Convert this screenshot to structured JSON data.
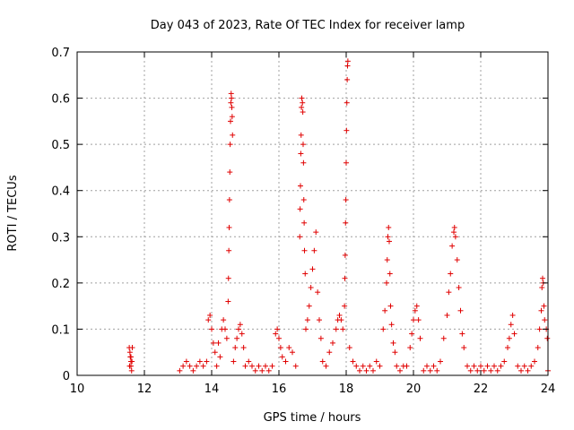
{
  "chart_data": {
    "type": "scatter",
    "title": "Day 043 of 2023, Rate Of TEC Index for receiver lamp",
    "xlabel": "GPS time / hours",
    "ylabel": "ROTI / TECUs",
    "xlim": [
      10,
      24
    ],
    "ylim": [
      0,
      0.7
    ],
    "x_ticks": [
      10,
      12,
      14,
      16,
      18,
      20,
      22,
      24
    ],
    "x_tick_labels": [
      "10",
      "12",
      "14",
      "16",
      "18",
      "20",
      "22",
      "24"
    ],
    "y_ticks": [
      0,
      0.1,
      0.2,
      0.3,
      0.4,
      0.5,
      0.6,
      0.7
    ],
    "y_tick_labels": [
      "0",
      "0.1",
      "0.2",
      "0.3",
      "0.4",
      "0.5",
      "0.6",
      "0.7"
    ],
    "grid": true,
    "marker": "+",
    "color": "#e00000",
    "series": [
      {
        "points": [
          [
            11.55,
            0.06
          ],
          [
            11.57,
            0.05
          ],
          [
            11.58,
            0.04
          ],
          [
            11.6,
            0.03
          ],
          [
            11.6,
            0.02
          ],
          [
            11.62,
            0.01
          ],
          [
            11.63,
            0.03
          ],
          [
            11.64,
            0.06
          ],
          [
            11.56,
            0.02
          ],
          [
            11.6,
            0.04
          ],
          [
            14.49,
            0.16
          ],
          [
            14.5,
            0.21
          ],
          [
            14.51,
            0.27
          ],
          [
            14.52,
            0.32
          ],
          [
            14.53,
            0.38
          ],
          [
            14.54,
            0.44
          ],
          [
            14.55,
            0.5
          ],
          [
            14.56,
            0.55
          ],
          [
            14.57,
            0.59
          ],
          [
            14.58,
            0.61
          ],
          [
            14.59,
            0.6
          ],
          [
            14.6,
            0.58
          ],
          [
            14.61,
            0.56
          ],
          [
            14.62,
            0.52
          ],
          [
            16.62,
            0.3
          ],
          [
            16.63,
            0.36
          ],
          [
            16.64,
            0.41
          ],
          [
            16.65,
            0.48
          ],
          [
            16.66,
            0.52
          ],
          [
            16.67,
            0.58
          ],
          [
            16.68,
            0.6
          ],
          [
            16.7,
            0.59
          ],
          [
            16.71,
            0.57
          ],
          [
            16.72,
            0.5
          ],
          [
            16.73,
            0.46
          ],
          [
            16.74,
            0.38
          ],
          [
            16.75,
            0.33
          ],
          [
            16.76,
            0.27
          ],
          [
            16.78,
            0.22
          ],
          [
            17.95,
            0.15
          ],
          [
            17.96,
            0.21
          ],
          [
            17.97,
            0.26
          ],
          [
            17.98,
            0.33
          ],
          [
            17.99,
            0.38
          ],
          [
            18.0,
            0.46
          ],
          [
            18.01,
            0.53
          ],
          [
            18.02,
            0.59
          ],
          [
            18.03,
            0.64
          ],
          [
            18.04,
            0.67
          ],
          [
            18.05,
            0.68
          ],
          [
            17.1,
            0.31
          ],
          [
            17.05,
            0.27
          ],
          [
            17.0,
            0.23
          ],
          [
            16.95,
            0.19
          ],
          [
            16.9,
            0.15
          ],
          [
            16.85,
            0.12
          ],
          [
            16.8,
            0.1
          ],
          [
            17.15,
            0.18
          ],
          [
            17.2,
            0.12
          ],
          [
            17.25,
            0.08
          ],
          [
            13.9,
            0.12
          ],
          [
            13.95,
            0.13
          ],
          [
            14.0,
            0.1
          ],
          [
            14.05,
            0.07
          ],
          [
            14.1,
            0.05
          ],
          [
            14.2,
            0.07
          ],
          [
            14.3,
            0.1
          ],
          [
            14.35,
            0.12
          ],
          [
            14.4,
            0.1
          ],
          [
            14.45,
            0.08
          ],
          [
            14.7,
            0.06
          ],
          [
            14.75,
            0.08
          ],
          [
            14.8,
            0.1
          ],
          [
            14.85,
            0.11
          ],
          [
            14.9,
            0.09
          ],
          [
            14.95,
            0.06
          ],
          [
            15.9,
            0.09
          ],
          [
            15.95,
            0.1
          ],
          [
            16.0,
            0.08
          ],
          [
            16.05,
            0.06
          ],
          [
            16.1,
            0.04
          ],
          [
            16.3,
            0.06
          ],
          [
            16.4,
            0.05
          ],
          [
            17.5,
            0.05
          ],
          [
            17.6,
            0.07
          ],
          [
            17.7,
            0.1
          ],
          [
            17.75,
            0.12
          ],
          [
            17.8,
            0.13
          ],
          [
            17.85,
            0.12
          ],
          [
            17.9,
            0.1
          ],
          [
            18.1,
            0.06
          ],
          [
            18.2,
            0.03
          ],
          [
            19.1,
            0.1
          ],
          [
            19.15,
            0.14
          ],
          [
            19.2,
            0.2
          ],
          [
            19.22,
            0.25
          ],
          [
            19.24,
            0.3
          ],
          [
            19.26,
            0.32
          ],
          [
            19.28,
            0.29
          ],
          [
            19.3,
            0.22
          ],
          [
            19.32,
            0.15
          ],
          [
            19.35,
            0.11
          ],
          [
            19.4,
            0.07
          ],
          [
            19.45,
            0.05
          ],
          [
            19.9,
            0.06
          ],
          [
            19.95,
            0.09
          ],
          [
            20.0,
            0.12
          ],
          [
            20.05,
            0.14
          ],
          [
            20.1,
            0.15
          ],
          [
            20.15,
            0.12
          ],
          [
            20.2,
            0.08
          ],
          [
            20.9,
            0.08
          ],
          [
            21.0,
            0.13
          ],
          [
            21.05,
            0.18
          ],
          [
            21.1,
            0.22
          ],
          [
            21.15,
            0.28
          ],
          [
            21.2,
            0.31
          ],
          [
            21.22,
            0.32
          ],
          [
            21.25,
            0.3
          ],
          [
            21.3,
            0.25
          ],
          [
            21.35,
            0.19
          ],
          [
            21.4,
            0.14
          ],
          [
            21.45,
            0.09
          ],
          [
            21.5,
            0.06
          ],
          [
            22.8,
            0.06
          ],
          [
            22.85,
            0.08
          ],
          [
            22.9,
            0.11
          ],
          [
            22.95,
            0.13
          ],
          [
            23.0,
            0.09
          ],
          [
            23.7,
            0.06
          ],
          [
            23.75,
            0.1
          ],
          [
            23.8,
            0.14
          ],
          [
            23.82,
            0.19
          ],
          [
            23.84,
            0.21
          ],
          [
            23.86,
            0.2
          ],
          [
            23.88,
            0.15
          ],
          [
            23.9,
            0.12
          ],
          [
            23.95,
            0.1
          ],
          [
            23.98,
            0.08
          ],
          [
            13.05,
            0.01
          ],
          [
            13.15,
            0.02
          ],
          [
            13.25,
            0.03
          ],
          [
            13.35,
            0.02
          ],
          [
            13.45,
            0.01
          ],
          [
            13.55,
            0.02
          ],
          [
            13.65,
            0.03
          ],
          [
            13.75,
            0.02
          ],
          [
            13.85,
            0.03
          ],
          [
            14.15,
            0.02
          ],
          [
            14.25,
            0.04
          ],
          [
            14.65,
            0.03
          ],
          [
            15.0,
            0.02
          ],
          [
            15.1,
            0.03
          ],
          [
            15.2,
            0.02
          ],
          [
            15.3,
            0.01
          ],
          [
            15.4,
            0.02
          ],
          [
            15.5,
            0.01
          ],
          [
            15.6,
            0.02
          ],
          [
            15.7,
            0.01
          ],
          [
            15.8,
            0.02
          ],
          [
            16.2,
            0.03
          ],
          [
            16.5,
            0.02
          ],
          [
            17.3,
            0.03
          ],
          [
            17.4,
            0.02
          ],
          [
            18.3,
            0.02
          ],
          [
            18.4,
            0.01
          ],
          [
            18.5,
            0.02
          ],
          [
            18.6,
            0.01
          ],
          [
            18.7,
            0.02
          ],
          [
            18.8,
            0.01
          ],
          [
            18.9,
            0.03
          ],
          [
            19.0,
            0.02
          ],
          [
            19.5,
            0.02
          ],
          [
            19.6,
            0.01
          ],
          [
            19.7,
            0.02
          ],
          [
            19.8,
            0.02
          ],
          [
            20.3,
            0.01
          ],
          [
            20.4,
            0.02
          ],
          [
            20.5,
            0.01
          ],
          [
            20.6,
            0.02
          ],
          [
            20.7,
            0.01
          ],
          [
            20.8,
            0.03
          ],
          [
            21.6,
            0.02
          ],
          [
            21.7,
            0.01
          ],
          [
            21.8,
            0.02
          ],
          [
            21.9,
            0.01
          ],
          [
            22.0,
            0.02
          ],
          [
            22.1,
            0.01
          ],
          [
            22.2,
            0.02
          ],
          [
            22.3,
            0.01
          ],
          [
            22.4,
            0.02
          ],
          [
            22.5,
            0.01
          ],
          [
            22.6,
            0.02
          ],
          [
            22.7,
            0.03
          ],
          [
            23.1,
            0.02
          ],
          [
            23.2,
            0.01
          ],
          [
            23.3,
            0.02
          ],
          [
            23.4,
            0.01
          ],
          [
            23.5,
            0.02
          ],
          [
            23.6,
            0.03
          ],
          [
            24.0,
            0.01
          ]
        ]
      }
    ]
  }
}
